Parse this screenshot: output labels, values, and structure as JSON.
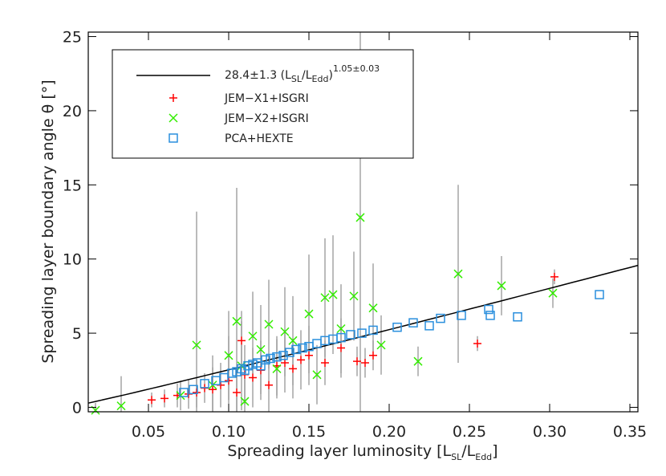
{
  "chart_data": {
    "type": "scatter",
    "x_label": {
      "text": "Spreading layer luminosity [L",
      "sub1": "SL",
      "mid": "/L",
      "sub2": "Edd",
      "end": "]"
    },
    "y_label": "Spreading layer boundary angle θ [°]",
    "xlim": [
      0.0125,
      0.355
    ],
    "ylim": [
      -0.3,
      25.3
    ],
    "xticks": [
      {
        "value": 0.05,
        "label": "0.05"
      },
      {
        "value": 0.1,
        "label": "0.10"
      },
      {
        "value": 0.15,
        "label": "0.15"
      },
      {
        "value": 0.2,
        "label": "0.20"
      },
      {
        "value": 0.25,
        "label": "0.25"
      },
      {
        "value": 0.3,
        "label": "0.30"
      },
      {
        "value": 0.35,
        "label": "0.35"
      }
    ],
    "yticks": [
      0,
      5,
      10,
      15,
      20,
      25
    ],
    "fit": {
      "name": {
        "coef": "28.4±1.3 (L",
        "sub1": "SL",
        "mid": "/L",
        "sub2": "Edd",
        "close": ")",
        "exponent": "1.05±0.03"
      },
      "a": 28.4,
      "b": 1.05,
      "color": "#000000"
    },
    "series": [
      {
        "name": "JEM−X1+ISGRI",
        "color": "#ff0000",
        "marker": "plus",
        "x": [
          0.052,
          0.06,
          0.068,
          0.075,
          0.08,
          0.085,
          0.09,
          0.095,
          0.1,
          0.105,
          0.108,
          0.11,
          0.115,
          0.12,
          0.125,
          0.13,
          0.135,
          0.14,
          0.145,
          0.15,
          0.16,
          0.17,
          0.18,
          0.185,
          0.19,
          0.255,
          0.303
        ],
        "values": [
          0.5,
          0.6,
          0.8,
          0.9,
          1.0,
          1.3,
          1.2,
          1.5,
          1.8,
          1.0,
          4.5,
          2.2,
          2.0,
          2.5,
          1.5,
          2.8,
          3.0,
          2.6,
          3.2,
          3.5,
          3.0,
          4.0,
          3.1,
          3.0,
          3.5,
          4.3,
          8.8
        ],
        "errors": [
          0.5,
          0.6,
          0.8,
          1,
          1,
          1,
          1.5,
          1.5,
          3,
          1.5,
          2,
          2,
          2,
          2,
          2,
          2,
          2,
          2,
          2,
          2,
          1.5,
          2,
          1,
          1,
          1,
          0.5,
          0.5
        ]
      },
      {
        "name": "JEM−X2+ISGRI",
        "color": "#33ee00",
        "marker": "cross",
        "x": [
          0.017,
          0.033,
          0.07,
          0.08,
          0.09,
          0.1,
          0.105,
          0.108,
          0.11,
          0.115,
          0.12,
          0.125,
          0.13,
          0.135,
          0.14,
          0.15,
          0.155,
          0.16,
          0.165,
          0.17,
          0.178,
          0.182,
          0.19,
          0.195,
          0.218,
          0.243,
          0.27,
          0.302
        ],
        "values": [
          -0.2,
          0.1,
          0.8,
          4.2,
          1.5,
          3.5,
          5.8,
          2.8,
          0.4,
          4.8,
          3.9,
          5.6,
          2.6,
          5.1,
          4.5,
          6.3,
          2.2,
          7.4,
          7.6,
          5.3,
          7.5,
          12.8,
          6.7,
          4.2,
          3.1,
          9.0,
          8.2,
          7.7
        ],
        "errors": [
          0.5,
          2,
          1,
          9,
          2,
          3,
          9,
          3,
          2,
          3,
          3,
          3,
          2,
          3,
          3,
          4,
          2,
          4,
          4,
          3,
          3,
          14,
          3,
          2,
          1,
          6,
          2,
          1
        ]
      },
      {
        "name": "PCA+HEXTE",
        "color": "#2a8fdd",
        "marker": "square",
        "x": [
          0.072,
          0.078,
          0.085,
          0.092,
          0.097,
          0.102,
          0.105,
          0.108,
          0.11,
          0.112,
          0.115,
          0.118,
          0.12,
          0.123,
          0.126,
          0.13,
          0.134,
          0.138,
          0.142,
          0.146,
          0.15,
          0.155,
          0.16,
          0.165,
          0.17,
          0.176,
          0.183,
          0.19,
          0.205,
          0.215,
          0.225,
          0.232,
          0.245,
          0.262,
          0.263,
          0.28,
          0.331
        ],
        "values": [
          1.0,
          1.2,
          1.6,
          1.8,
          2.0,
          2.3,
          2.4,
          2.6,
          2.5,
          2.8,
          2.9,
          3.0,
          2.8,
          3.2,
          3.3,
          3.4,
          3.5,
          3.7,
          3.9,
          4.0,
          4.1,
          4.3,
          4.5,
          4.6,
          4.7,
          4.9,
          5.0,
          5.2,
          5.4,
          5.7,
          5.5,
          6.0,
          6.2,
          6.6,
          6.2,
          6.1,
          7.6
        ]
      }
    ]
  }
}
